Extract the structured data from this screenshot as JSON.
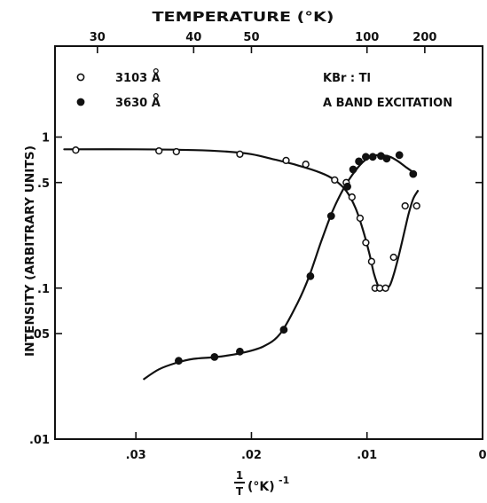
{
  "chart_data": {
    "type": "scatter",
    "title": "",
    "xlabel_top": "TEMPERATURE (°K)",
    "xlabel_bottom": {
      "fraction": "1/T",
      "unit": "(°K)",
      "exponent": "-1"
    },
    "ylabel": "INTENSITY (ARBITRARY UNITS)",
    "x_axis": {
      "direction": "reversed",
      "xlim": [
        0.037,
        0.0
      ],
      "scale": "linear"
    },
    "y_axis": {
      "scale": "log",
      "ylim": [
        0.01,
        4.0
      ]
    },
    "x_ticks_bottom": [
      {
        "value": 0.03,
        "label": ".03"
      },
      {
        "value": 0.02,
        "label": ".02"
      },
      {
        "value": 0.01,
        "label": ".01"
      },
      {
        "value": 0.0,
        "label": "0"
      }
    ],
    "x_ticks_top": [
      {
        "value": 0.03333,
        "label": "30"
      },
      {
        "value": 0.025,
        "label": "40"
      },
      {
        "value": 0.02,
        "label": "50"
      },
      {
        "value": 0.01,
        "label": "100"
      },
      {
        "value": 0.005,
        "label": "200"
      }
    ],
    "y_ticks": [
      {
        "value": 1.0,
        "label": "1"
      },
      {
        "value": 0.5,
        "label": ".5"
      },
      {
        "value": 0.1,
        "label": ".1"
      },
      {
        "value": 0.05,
        "label": ".05"
      },
      {
        "value": 0.01,
        "label": ".01"
      }
    ],
    "annotations": [
      "KBr : Tl",
      "A BAND EXCITATION"
    ],
    "legend_position": "top-left",
    "series": [
      {
        "name": "3103 Å",
        "marker": "open-circle",
        "x": [
          0.0352,
          0.028,
          0.0265,
          0.021,
          0.017,
          0.0153,
          0.0128,
          0.0118,
          0.0113,
          0.0106,
          0.0101,
          0.0096,
          0.0093,
          0.0089,
          0.0084,
          0.0077,
          0.0067,
          0.0057
        ],
        "y": [
          0.82,
          0.81,
          0.8,
          0.77,
          0.7,
          0.66,
          0.52,
          0.5,
          0.4,
          0.29,
          0.2,
          0.15,
          0.1,
          0.1,
          0.1,
          0.16,
          0.35,
          0.35
        ],
        "curve": {
          "x": [
            0.0362,
            0.03,
            0.025,
            0.022,
            0.02,
            0.018,
            0.016,
            0.014,
            0.0128,
            0.0118,
            0.011,
            0.0104,
            0.0098,
            0.0094,
            0.009,
            0.0087,
            0.0083,
            0.008,
            0.0076,
            0.0072,
            0.0068,
            0.0064,
            0.006,
            0.0056
          ],
          "y": [
            0.83,
            0.83,
            0.82,
            0.8,
            0.77,
            0.71,
            0.65,
            0.58,
            0.52,
            0.44,
            0.34,
            0.25,
            0.17,
            0.125,
            0.102,
            0.098,
            0.1,
            0.105,
            0.13,
            0.17,
            0.23,
            0.31,
            0.39,
            0.44
          ]
        }
      },
      {
        "name": "3630 Å",
        "marker": "filled-circle",
        "x": [
          0.0263,
          0.0232,
          0.021,
          0.0172,
          0.0149,
          0.0131,
          0.0117,
          0.0112,
          0.0107,
          0.0101,
          0.0095,
          0.0088,
          0.0083,
          0.0072,
          0.006
        ],
        "y": [
          0.033,
          0.035,
          0.038,
          0.053,
          0.12,
          0.3,
          0.47,
          0.61,
          0.69,
          0.74,
          0.74,
          0.75,
          0.72,
          0.76,
          0.57
        ],
        "curve": {
          "x": [
            0.0293,
            0.028,
            0.0265,
            0.025,
            0.023,
            0.021,
            0.019,
            0.0175,
            0.016,
            0.015,
            0.014,
            0.013,
            0.012,
            0.011,
            0.0102,
            0.0095,
            0.0088,
            0.008,
            0.0073,
            0.0066,
            0.0058
          ],
          "y": [
            0.025,
            0.029,
            0.032,
            0.034,
            0.035,
            0.037,
            0.041,
            0.05,
            0.08,
            0.12,
            0.2,
            0.32,
            0.46,
            0.6,
            0.7,
            0.75,
            0.76,
            0.74,
            0.69,
            0.63,
            0.57
          ]
        }
      }
    ]
  }
}
